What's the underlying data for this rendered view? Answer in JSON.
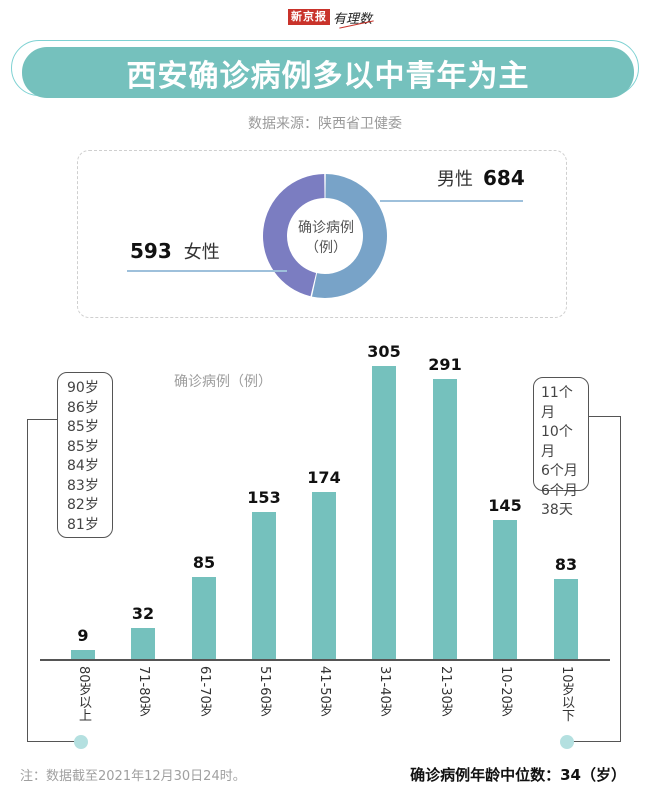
{
  "header": {
    "logo_red": "新京报",
    "logo_script": "有理数",
    "title": "西安确诊病例多以中青年为主",
    "source": "数据来源：陕西省卫健委"
  },
  "gender": {
    "center_line1": "确诊病例",
    "center_line2": "（例）",
    "male_label": "男性",
    "male_value": "684",
    "female_label": "女性",
    "female_value": "593",
    "colors": {
      "male": "#78a3c8",
      "female": "#7b7dc1"
    }
  },
  "age_chart": {
    "subtitle": "确诊病例（例）",
    "bar_color": "#75c1bd"
  },
  "callouts": {
    "elderly": [
      "90岁",
      "86岁",
      "85岁",
      "85岁",
      "84岁",
      "83岁",
      "82岁",
      "81岁"
    ],
    "infants": [
      "11个月",
      "10个月",
      "6个月",
      "6个月",
      "38天"
    ]
  },
  "footer": {
    "note": "注：数据截至2021年12月30日24时。",
    "median": "确诊病例年龄中位数：34（岁）"
  },
  "chart_data": [
    {
      "type": "pie",
      "title": "确诊病例（例）",
      "categories": [
        "男性",
        "女性"
      ],
      "values": [
        684,
        593
      ],
      "colors": [
        "#78a3c8",
        "#7b7dc1"
      ],
      "style": "donut"
    },
    {
      "type": "bar",
      "title": "西安确诊病例多以中青年为主",
      "ylabel": "确诊病例（例）",
      "xlabel": "",
      "categories": [
        "80岁以上",
        "71-80岁",
        "61-70岁",
        "51-60岁",
        "41-50岁",
        "31-40岁",
        "21-30岁",
        "10-20岁",
        "10岁以下"
      ],
      "values": [
        9,
        32,
        85,
        153,
        174,
        305,
        291,
        145,
        83
      ],
      "ylim": [
        0,
        305
      ],
      "grid": false,
      "annotations": [
        {
          "target": "80岁以上",
          "text": [
            "90岁",
            "86岁",
            "85岁",
            "85岁",
            "84岁",
            "83岁",
            "82岁",
            "81岁"
          ]
        },
        {
          "target": "10岁以下",
          "text": [
            "11个月",
            "10个月",
            "6个月",
            "6个月",
            "38天"
          ]
        },
        {
          "text": "确诊病例年龄中位数：34（岁）"
        }
      ]
    }
  ]
}
